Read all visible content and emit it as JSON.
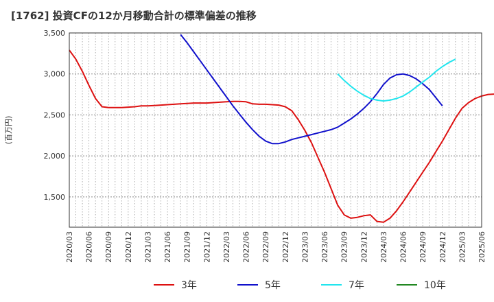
{
  "chart_data": {
    "type": "line",
    "title": "[1762]  投資CFの12か月移動合計の標準偏差の推移",
    "ylabel": "(百万円)",
    "xlabel": "",
    "ylim": [
      1130,
      3500
    ],
    "y_ticks": [
      1500,
      2000,
      2500,
      3000,
      3500
    ],
    "y_tick_labels": [
      "1,500",
      "2,000",
      "2,500",
      "3,000",
      "3,500"
    ],
    "x_tick_labels": [
      "2020/03",
      "2020/06",
      "2020/09",
      "2020/12",
      "2021/03",
      "2021/06",
      "2021/09",
      "2021/12",
      "2022/03",
      "2022/06",
      "2022/09",
      "2022/12",
      "2023/03",
      "2023/06",
      "2023/09",
      "2023/12",
      "2024/03",
      "2024/06",
      "2024/09",
      "2024/12",
      "2025/03",
      "2025/06"
    ],
    "grid": true,
    "legend_position": "bottom",
    "series": [
      {
        "name": "3年",
        "color": "#dd1111",
        "start_month": "2020/03",
        "values": [
          3290,
          3180,
          3030,
          2860,
          2700,
          2600,
          2590,
          2590,
          2590,
          2595,
          2600,
          2610,
          2610,
          2615,
          2620,
          2625,
          2630,
          2635,
          2640,
          2645,
          2645,
          2645,
          2650,
          2655,
          2660,
          2665,
          2665,
          2660,
          2635,
          2630,
          2630,
          2625,
          2620,
          2600,
          2550,
          2440,
          2310,
          2160,
          1980,
          1800,
          1600,
          1400,
          1280,
          1240,
          1250,
          1270,
          1280,
          1200,
          1190,
          1240,
          1330,
          1440,
          1560,
          1680,
          1800,
          1920,
          2050,
          2180,
          2320,
          2460,
          2580,
          2650,
          2700,
          2730,
          2750,
          2755
        ]
      },
      {
        "name": "5年",
        "color": "#1111cc",
        "start_month": "2021/08",
        "values": [
          3480,
          3380,
          3270,
          3160,
          3050,
          2940,
          2830,
          2720,
          2610,
          2510,
          2410,
          2320,
          2240,
          2180,
          2150,
          2150,
          2170,
          2200,
          2220,
          2240,
          2260,
          2280,
          2300,
          2320,
          2350,
          2400,
          2450,
          2510,
          2580,
          2660,
          2760,
          2870,
          2950,
          2990,
          3000,
          2980,
          2940,
          2880,
          2810,
          2710,
          2610
        ]
      },
      {
        "name": "7年",
        "color": "#22e5ee",
        "start_month": "2023/08",
        "values": [
          3000,
          2920,
          2850,
          2790,
          2740,
          2700,
          2680,
          2670,
          2680,
          2700,
          2730,
          2780,
          2840,
          2900,
          2960,
          3030,
          3090,
          3140,
          3180
        ]
      },
      {
        "name": "10年",
        "color": "#228822",
        "start_month": "2020/03",
        "values": []
      }
    ]
  }
}
